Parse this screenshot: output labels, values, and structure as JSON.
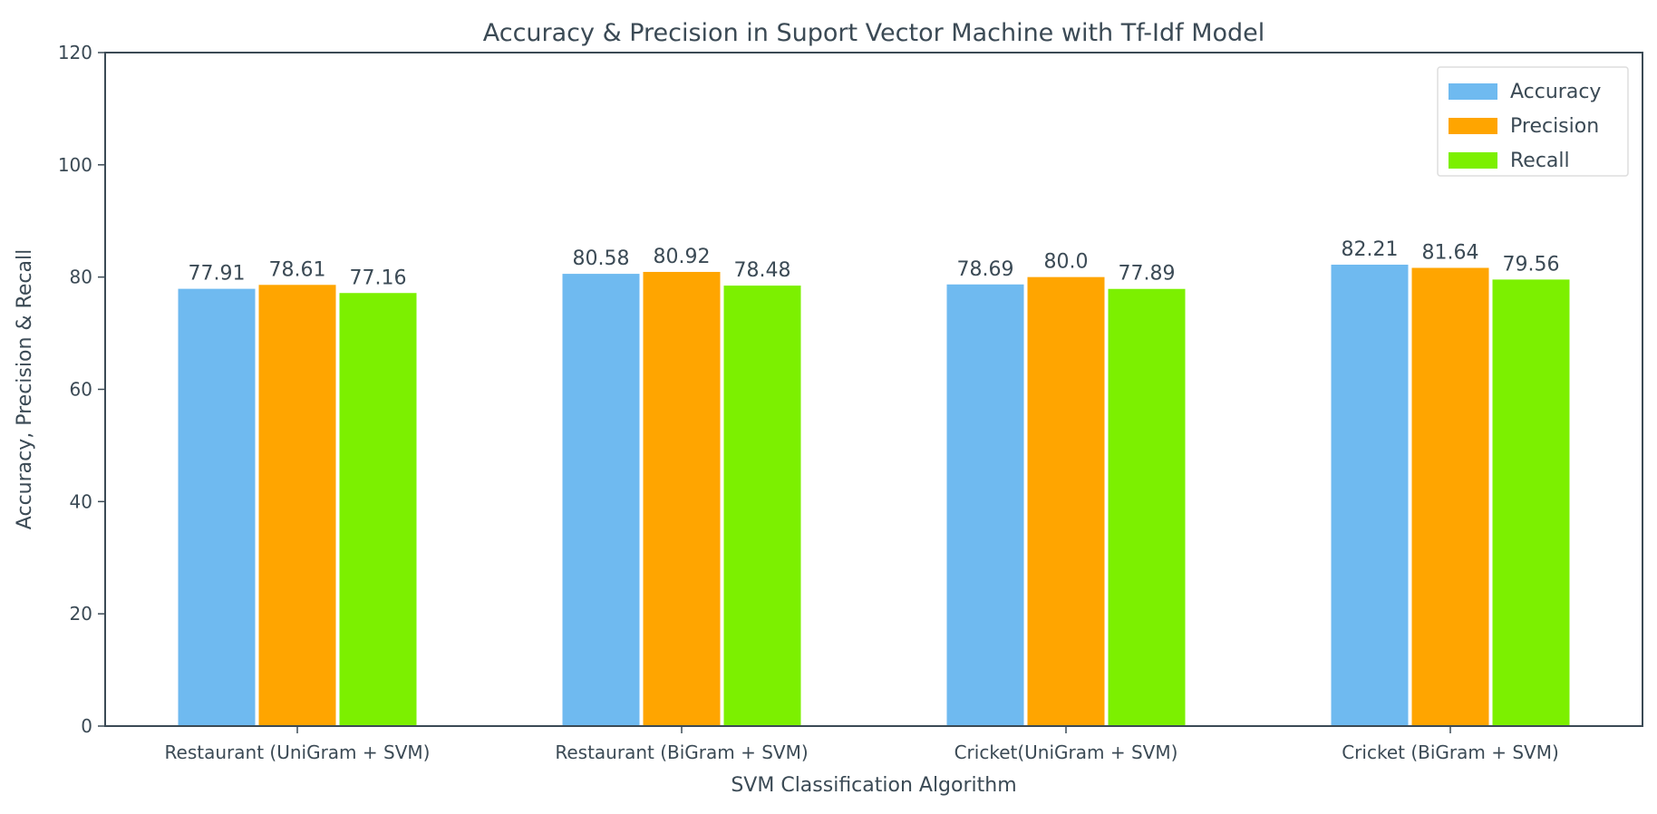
{
  "chart_data": {
    "type": "bar",
    "title": "Accuracy & Precision in Suport Vector Machine with Tf-Idf Model",
    "xlabel": "SVM Classification Algorithm",
    "ylabel": "Accuracy, Precision & Recall",
    "ylim": [
      0,
      120
    ],
    "yticks": [
      "0",
      "20",
      "40",
      "60",
      "80",
      "100",
      "120"
    ],
    "categories": [
      "Restaurant (UniGram + SVM)",
      "Restaurant (BiGram + SVM)",
      "Cricket(UniGram + SVM)",
      "Cricket (BiGram + SVM)"
    ],
    "series": [
      {
        "name": "Accuracy",
        "color": "#6fbaf0",
        "values": [
          77.91,
          80.58,
          78.69,
          82.21
        ],
        "labels": [
          "77.91",
          "80.58",
          "78.69",
          "82.21"
        ]
      },
      {
        "name": "Precision",
        "color": "#ffa500",
        "values": [
          78.61,
          80.92,
          80.0,
          81.64
        ],
        "labels": [
          "78.61",
          "80.92",
          "80.0",
          "81.64"
        ]
      },
      {
        "name": "Recall",
        "color": "#7cf000",
        "values": [
          77.16,
          78.48,
          77.89,
          79.56
        ],
        "labels": [
          "77.16",
          "78.48",
          "77.89",
          "79.56"
        ]
      }
    ],
    "legend_position": "top-right",
    "grid": false
  }
}
